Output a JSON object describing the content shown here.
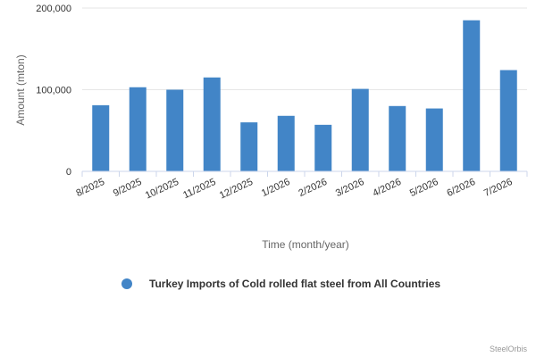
{
  "chart_data": {
    "type": "bar",
    "categories": [
      "8/2025",
      "9/2025",
      "10/2025",
      "11/2025",
      "12/2025",
      "1/2026",
      "2/2026",
      "3/2026",
      "4/2026",
      "5/2026",
      "6/2026",
      "7/2026"
    ],
    "series": [
      {
        "name": "Turkey Imports of Cold rolled flat steel from All Countries",
        "values": [
          81000,
          103000,
          100000,
          115000,
          60000,
          68000,
          57000,
          101000,
          80000,
          77000,
          185000,
          124000
        ]
      }
    ],
    "ylim": [
      0,
      200000
    ],
    "yticks": [
      0,
      100000,
      200000
    ],
    "ytick_labels": [
      "0",
      "100,000",
      "200,000"
    ],
    "xlabel": "Time (month/year)",
    "ylabel": "Amount (mton)",
    "grid": true,
    "legend_position": "bottom-center",
    "color": "#4285c7"
  },
  "credit": "SteelOrbis"
}
